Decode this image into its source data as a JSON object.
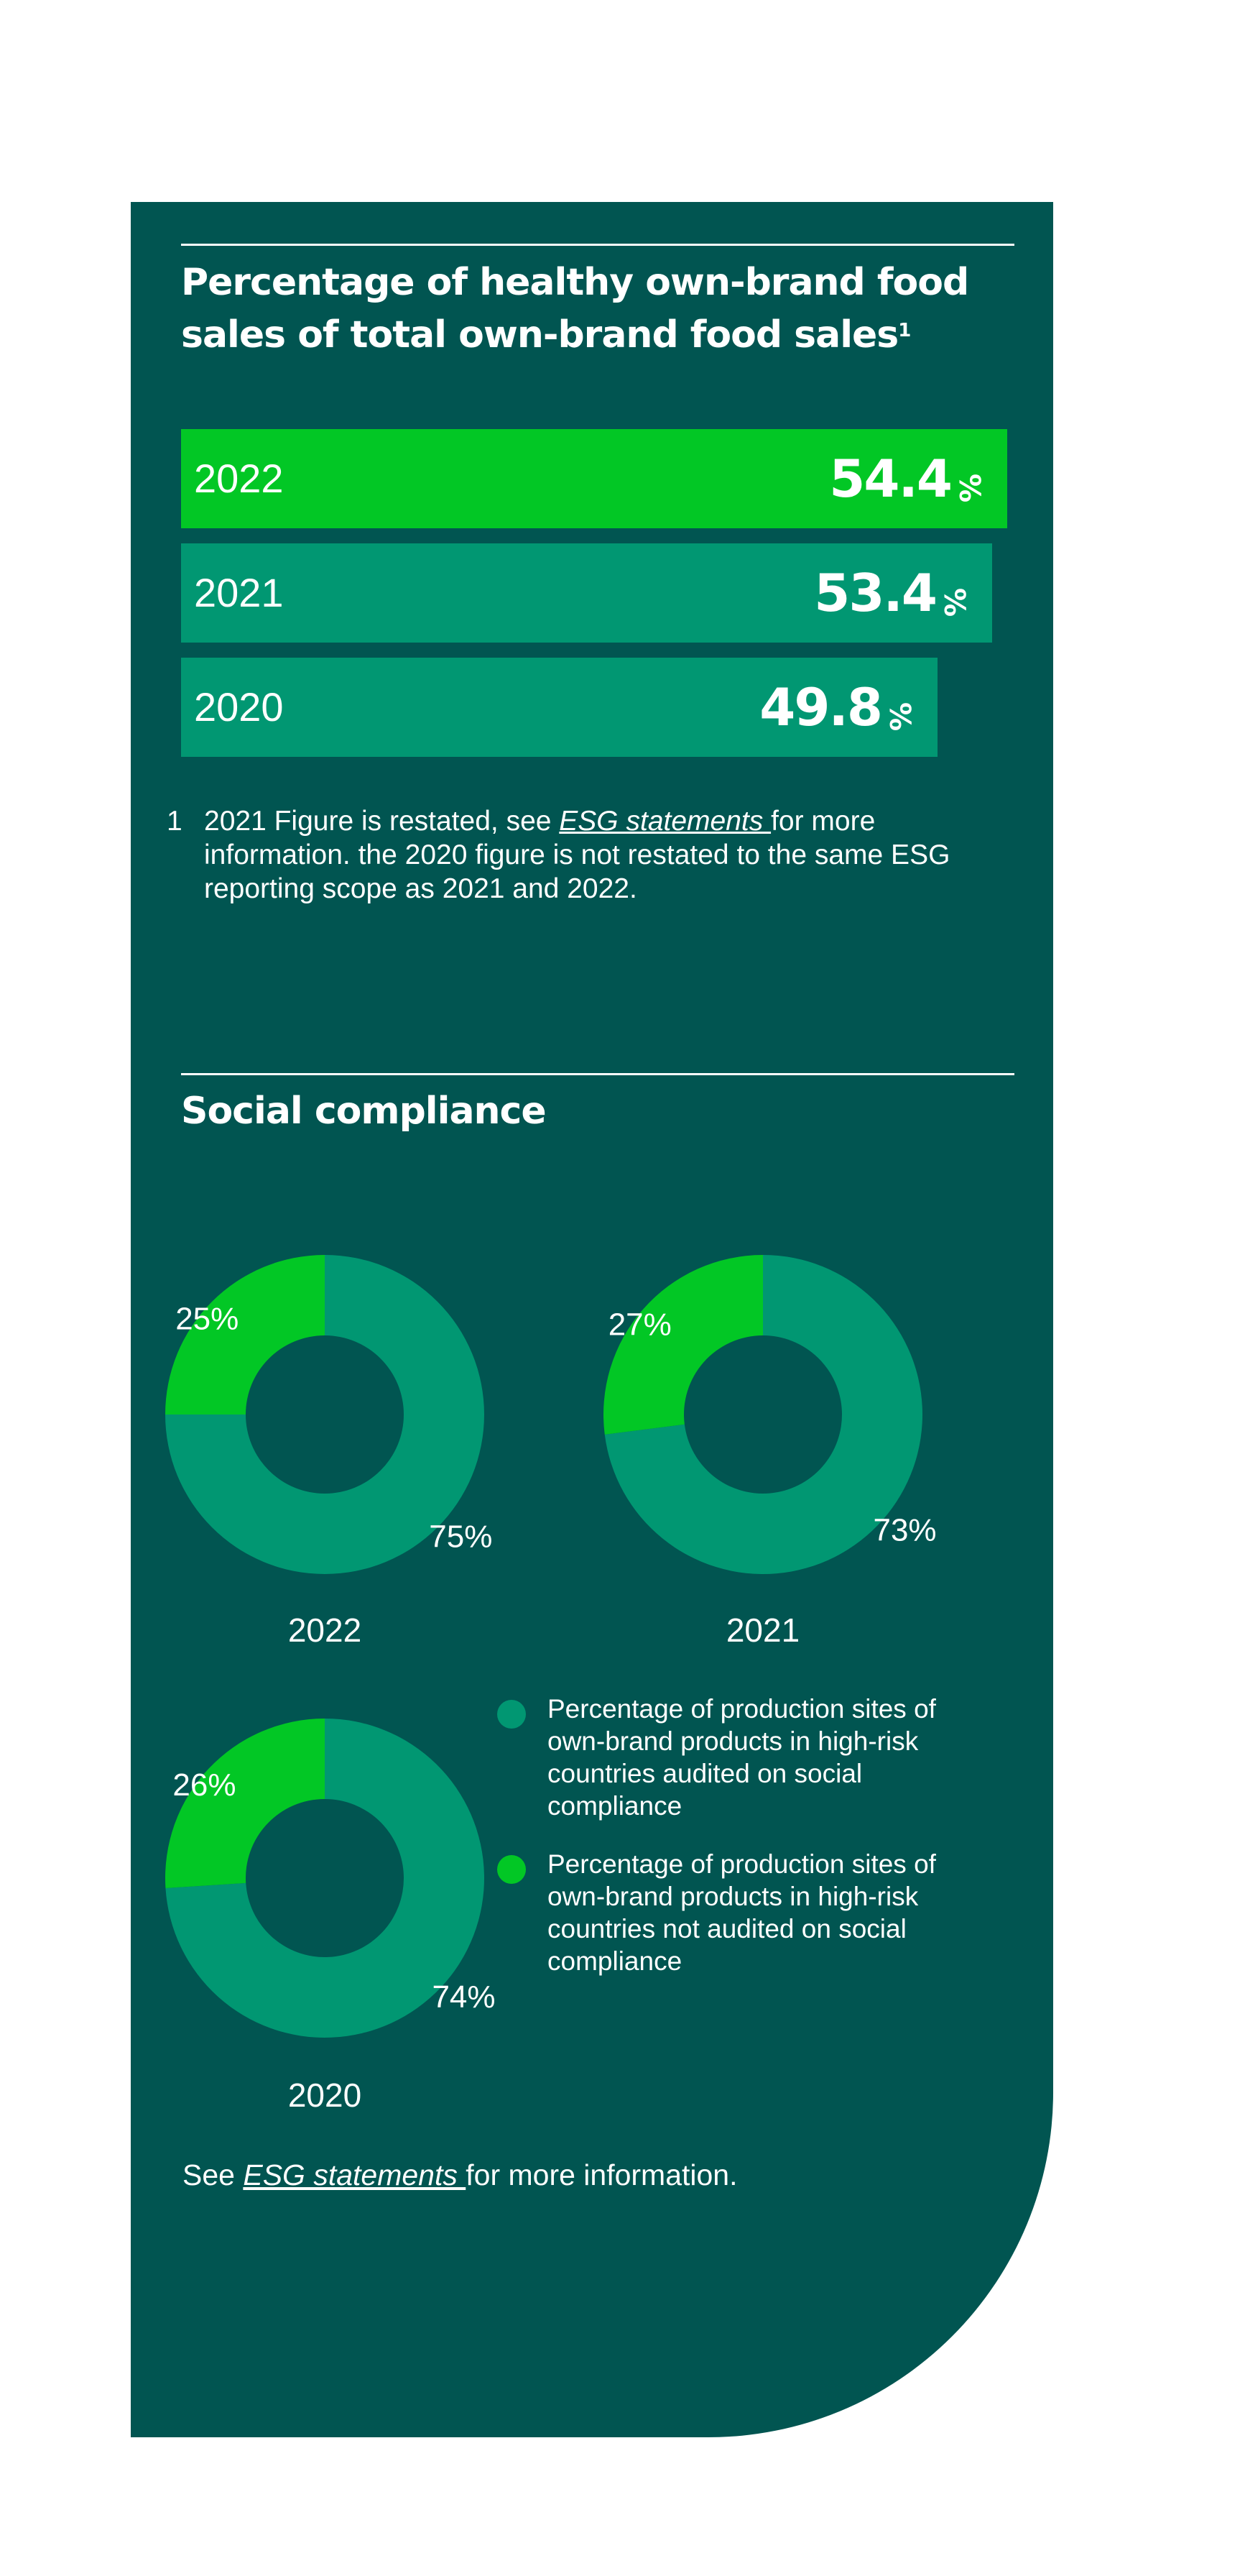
{
  "healthy_sales": {
    "title": "Percentage of healthy own-brand food sales of total own-brand food sales",
    "title_footnote_marker": "1",
    "footnote": {
      "number": "1",
      "text_before_link": "2021 Figure is restated, see ",
      "link_text": "ESG statements ",
      "text_after_link": "for more information. the 2020 figure is not restated to the same ESG reporting scope as 2021 and 2022."
    }
  },
  "social_compliance": {
    "title": "Social compliance",
    "legend": [
      {
        "label": "Percentage of production sites of own-brand products in high-risk countries audited on social compliance",
        "color": "#019772"
      },
      {
        "label": "Percentage of production sites of own-brand products in high-risk countries not audited on social compliance",
        "color": "#02C725"
      }
    ],
    "see_text_before": "See ",
    "see_link": "ESG statements ",
    "see_text_after": "for more information."
  },
  "chart_data": [
    {
      "type": "bar",
      "orientation": "horizontal",
      "title": "Percentage of healthy own-brand food sales of total own-brand food sales",
      "categories": [
        "2022",
        "2021",
        "2020"
      ],
      "values": [
        54.4,
        53.4,
        49.8
      ],
      "value_labels": [
        "54.4",
        "53.4",
        "49.8"
      ],
      "value_suffix": "%",
      "colors": [
        "#02C725",
        "#019772",
        "#019772"
      ]
    },
    {
      "type": "pie",
      "style": "donut",
      "year": "2022",
      "slices": [
        {
          "label": "audited",
          "value": 75,
          "text": "75%",
          "color": "#019772"
        },
        {
          "label": "not audited",
          "value": 25,
          "text": "25%",
          "color": "#02C725"
        }
      ]
    },
    {
      "type": "pie",
      "style": "donut",
      "year": "2021",
      "slices": [
        {
          "label": "audited",
          "value": 73,
          "text": "73%",
          "color": "#019772"
        },
        {
          "label": "not audited",
          "value": 27,
          "text": "27%",
          "color": "#02C725"
        }
      ]
    },
    {
      "type": "pie",
      "style": "donut",
      "year": "2020",
      "slices": [
        {
          "label": "audited",
          "value": 74,
          "text": "74%",
          "color": "#019772"
        },
        {
          "label": "not audited",
          "value": 26,
          "text": "26%",
          "color": "#02C725"
        }
      ]
    }
  ]
}
